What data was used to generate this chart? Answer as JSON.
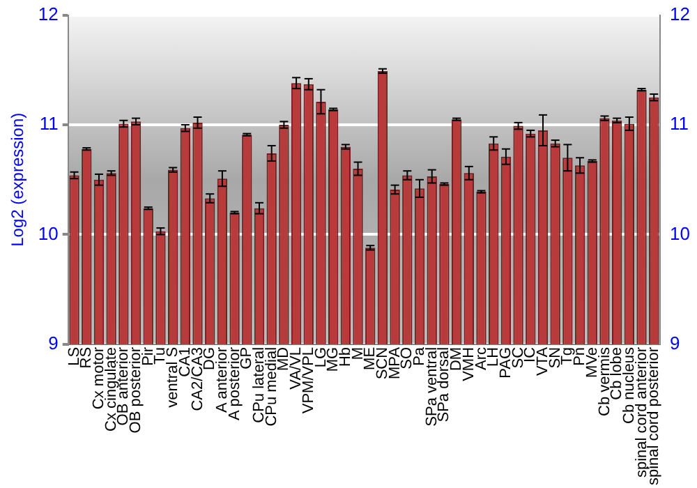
{
  "chart_data": {
    "type": "bar",
    "ylabel": "Log2 (expression)",
    "categories": [
      "LS",
      "RS",
      "Cx motor",
      "Cx cingulate",
      "OB anterior",
      "OB posterior",
      "Pir",
      "Tu",
      "ventral S",
      "CA1",
      "CA2/CA3",
      "DG",
      "A anterior",
      "A posterior",
      "GP",
      "CPu lateral",
      "CPu medial",
      "MD",
      "VA/VL",
      "VPM/VPL",
      "LG",
      "MG",
      "Hb",
      "M",
      "ME",
      "SCN",
      "MPA",
      "SO",
      "Pa",
      "SPa ventral",
      "SPa dorsal",
      "DM",
      "VMH",
      "Arc",
      "LH",
      "PAG",
      "SC",
      "IC",
      "VTA",
      "SN",
      "Tg",
      "Pn",
      "MVe",
      "Cb vermis",
      "Cb lobe",
      "Cb nucleus",
      "spinal cord anterior",
      "spinal cord posterior"
    ],
    "values": [
      10.54,
      10.78,
      10.5,
      10.56,
      11.01,
      11.03,
      10.24,
      10.03,
      10.59,
      10.97,
      11.02,
      10.33,
      10.51,
      10.2,
      10.91,
      10.24,
      10.74,
      11.0,
      11.38,
      11.37,
      11.21,
      11.14,
      10.8,
      10.6,
      9.88,
      11.49,
      10.41,
      10.54,
      10.42,
      10.53,
      10.46,
      11.05,
      10.56,
      10.39,
      10.83,
      10.71,
      10.99,
      10.92,
      10.95,
      10.83,
      10.7,
      10.63,
      10.67,
      11.06,
      11.04,
      11.01,
      11.32,
      11.25
    ],
    "errors": [
      0.03,
      0.01,
      0.05,
      0.02,
      0.03,
      0.03,
      0.01,
      0.03,
      0.02,
      0.03,
      0.05,
      0.04,
      0.07,
      0.01,
      0.01,
      0.05,
      0.07,
      0.03,
      0.05,
      0.05,
      0.11,
      0.01,
      0.02,
      0.06,
      0.02,
      0.02,
      0.04,
      0.04,
      0.08,
      0.06,
      0.01,
      0.01,
      0.06,
      0.01,
      0.06,
      0.07,
      0.03,
      0.03,
      0.14,
      0.03,
      0.12,
      0.07,
      0.01,
      0.02,
      0.02,
      0.06,
      0.01,
      0.03
    ],
    "color": "#b83a3a",
    "ylim": [
      9,
      12
    ],
    "yticks": [
      9,
      10,
      11,
      12
    ],
    "y2lim": [
      9,
      12
    ],
    "y2ticks": [
      9,
      10,
      11,
      12
    ],
    "grid": "y",
    "legend": false
  }
}
